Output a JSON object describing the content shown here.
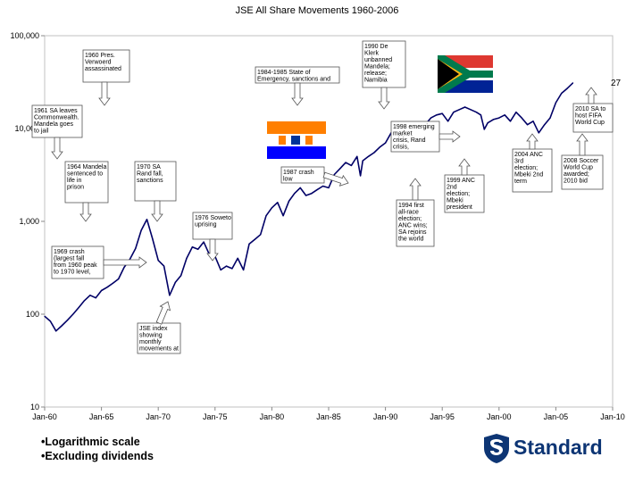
{
  "page_number": "27",
  "notes": [
    "•Logarithmic scale",
    "•Excluding dividends"
  ],
  "logo": {
    "text": "Standard",
    "icon": "standard-bank-shield-icon",
    "color": "#0d3574"
  },
  "flags": [
    {
      "name": "south-africa-flag-icon",
      "colors": [
        "#000000",
        "#ffb612",
        "#007a4d",
        "#de3831",
        "#002395",
        "#ffffff"
      ]
    },
    {
      "name": "old-south-africa-flag-icon",
      "colors": [
        "#ff7f00",
        "#ffffff",
        "#0000ff"
      ]
    }
  ],
  "chart_data": {
    "type": "line",
    "title": "JSE All Share Movements 1960-2006",
    "scale": "log",
    "ylim": [
      10,
      100000
    ],
    "y_ticks": [
      "100,000",
      "10,000",
      "1,000",
      "100",
      "10"
    ],
    "x_ticks": [
      "Jan-60",
      "Jan-65",
      "Jan-70",
      "Jan-75",
      "Jan-80",
      "Jan-85",
      "Jan-90",
      "Jan-95",
      "Jan-00",
      "Jan-05",
      "Jan-10"
    ],
    "line_color": "#000066",
    "series": [
      {
        "x": [
          1960.0,
          1960.5,
          1961.0,
          1961.5,
          1962.0,
          1962.5,
          1963.0,
          1963.5,
          1964.0,
          1964.5,
          1965.0,
          1965.5,
          1966.0,
          1966.5,
          1967.0,
          1967.5,
          1968.0,
          1968.5,
          1969.0,
          1969.5,
          1970.0,
          1970.5,
          1971.0,
          1971.5,
          1972.0,
          1972.5,
          1973.0,
          1973.5,
          1974.0,
          1974.5,
          1975.0,
          1975.5,
          1976.0,
          1976.5,
          1977.0,
          1977.5,
          1978.0,
          1978.5,
          1979.0,
          1979.5,
          1980.0,
          1980.5,
          1981.0,
          1981.5,
          1982.0,
          1982.5,
          1983.0,
          1983.5,
          1984.0,
          1984.5,
          1985.0,
          1985.5,
          1986.0,
          1986.5,
          1987.0,
          1987.5,
          1987.8,
          1988.0,
          1988.5,
          1989.0,
          1989.5,
          1990.0,
          1990.5,
          1991.0,
          1991.5,
          1992.0,
          1992.5,
          1993.0,
          1993.5,
          1994.0,
          1994.5,
          1995.0,
          1995.5,
          1996.0,
          1996.5,
          1997.0,
          1997.5,
          1998.0,
          1998.4,
          1998.7,
          1999.0,
          1999.5,
          2000.0,
          2000.5,
          2001.0,
          2001.5,
          2002.0,
          2002.5,
          2003.0,
          2003.5,
          2004.0,
          2004.5,
          2005.0,
          2005.5,
          2006.0,
          2006.5
        ],
        "values": [
          95,
          84,
          66,
          75,
          86,
          100,
          118,
          140,
          160,
          150,
          180,
          195,
          215,
          240,
          320,
          390,
          510,
          800,
          1050,
          650,
          380,
          330,
          160,
          220,
          260,
          400,
          530,
          500,
          600,
          440,
          420,
          300,
          330,
          310,
          400,
          300,
          570,
          640,
          720,
          1150,
          1400,
          1600,
          1150,
          1650,
          2000,
          2300,
          1900,
          2000,
          2200,
          2400,
          2300,
          3200,
          3700,
          4300,
          4000,
          5000,
          3100,
          4500,
          5000,
          5500,
          6300,
          7000,
          9000,
          7500,
          8300,
          8000,
          9000,
          10000,
          11000,
          13000,
          14000,
          14500,
          12000,
          15000,
          16000,
          17000,
          16000,
          15000,
          14000,
          9800,
          11500,
          12500,
          13000,
          14000,
          12000,
          15000,
          13000,
          11000,
          12000,
          9000,
          11000,
          13000,
          19000,
          24000,
          27000,
          31000
        ]
      }
    ],
    "annotations": [
      "1960 Pres. Verwoerd assassinated",
      "1961 SA leaves Commonwealth. Mandela goes to jail",
      "1964 Mandela sentenced to life in prison",
      "1970 SA Rand fall, sanctions",
      "1969 crash (largest fall from 1960 peak to 1970 level, excluding dividends)",
      "JSE index showing monthly movements at start of data",
      "1976 Soweto uprising",
      "1984-1985 State of Emergency, sanctions and disinvestment",
      "1987 crash low",
      "1990 De Klerk unbanned Mandela; release; Namibia independence",
      "1998 emerging market crisis, Rand crisis, recession",
      "1994 first all-race election; ANC wins; SA rejoins the world",
      "1999 ANC 2nd election; Mbeki president",
      "2004 ANC 3rd election; Mbeki 2nd term",
      "2008 Soccer World Cup awarded; 2010 bid",
      "2010 SA to host FIFA World Cup"
    ]
  }
}
